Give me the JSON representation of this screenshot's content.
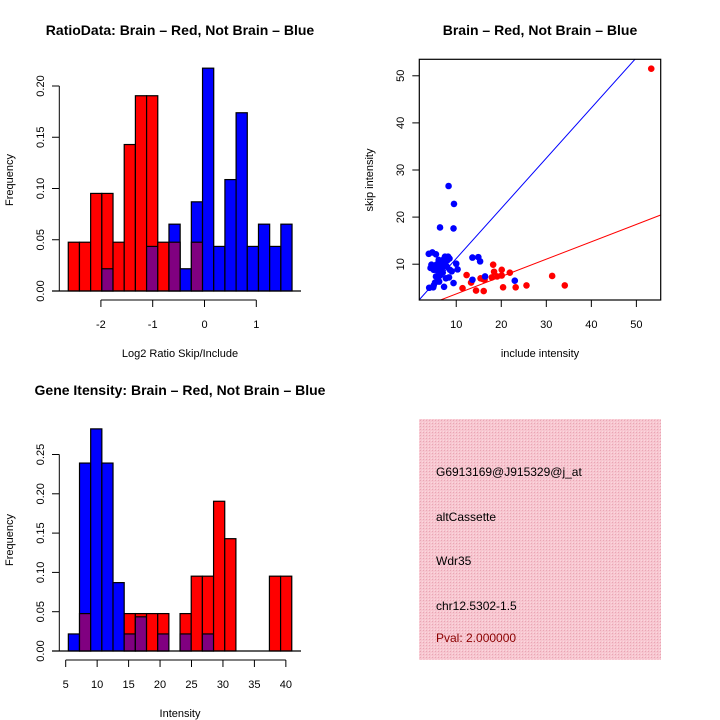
{
  "chart_data": [
    {
      "id": "ratio",
      "type": "bar",
      "title": "RatioData: Brain – Red, Not Brain – Blue",
      "xlabel": "Log2 Ratio Skip/Include",
      "ylabel": "Frequency",
      "bin_start": -2.63,
      "bin_width": 0.216,
      "series": [
        {
          "name": "Brain",
          "color": "#ff0000",
          "values": [
            0.0476,
            0.0476,
            0.0952,
            0.0952,
            0.0476,
            0.1429,
            0.1905,
            0.1905,
            0.0476,
            0.0476,
            0,
            0.0476,
            0,
            0,
            0,
            0,
            0,
            0,
            0,
            0
          ]
        },
        {
          "name": "Not Brain",
          "color": "#0000ff",
          "values": [
            0,
            0,
            0,
            0.0217,
            0,
            0,
            0,
            0.0435,
            0,
            0.0652,
            0.0217,
            0.087,
            0.2174,
            0.0435,
            0.1087,
            0.1739,
            0.0435,
            0.0652,
            0.0435,
            0.0652
          ]
        }
      ],
      "overlap_color": "#800080",
      "xticks": [
        "-2",
        "-1",
        "0",
        "1"
      ],
      "xtick_values": [
        -2,
        -1,
        0,
        1
      ],
      "yticks": [
        "0.00",
        "0.05",
        "0.10",
        "0.15",
        "0.20"
      ],
      "ytick_values": [
        0,
        0.05,
        0.1,
        0.15,
        0.2
      ]
    },
    {
      "id": "scatter",
      "type": "scatter",
      "title": "Brain – Red, Not Brain – Blue",
      "xlabel": "include intensity",
      "ylabel": "skip intensity",
      "xlim": [
        1.8,
        55.4
      ],
      "ylim": [
        2.4,
        53.5
      ],
      "xticks": [
        "10",
        "20",
        "30",
        "40",
        "50"
      ],
      "xtick_values": [
        10,
        20,
        30,
        40,
        50
      ],
      "yticks": [
        "10",
        "20",
        "30",
        "40",
        "50"
      ],
      "ytick_values": [
        10,
        20,
        30,
        40,
        50
      ],
      "lines": [
        {
          "name": "Not Brain fit",
          "color": "#0000ff",
          "slope": 1.066,
          "intercept": 0.54
        },
        {
          "name": "Brain fit",
          "color": "#ff0000",
          "slope": 0.369,
          "intercept": 0.0
        }
      ],
      "series": [
        {
          "name": "Brain",
          "color": "#ff0000",
          "points": [
            [
              53.3,
              51.5
            ],
            [
              18.2,
              9.9
            ],
            [
              20.1,
              8.8
            ],
            [
              18.4,
              8.4
            ],
            [
              21.9,
              8.2
            ],
            [
              12.3,
              7.7
            ],
            [
              19.1,
              7.4
            ],
            [
              20.1,
              7.6
            ],
            [
              31.3,
              7.5
            ],
            [
              13.3,
              6.1
            ],
            [
              15.4,
              7.0
            ],
            [
              16.3,
              6.7
            ],
            [
              11.4,
              4.9
            ],
            [
              14.4,
              4.4
            ],
            [
              16.1,
              4.3
            ],
            [
              20.4,
              5.1
            ],
            [
              23.2,
              5.1
            ],
            [
              25.6,
              5.5
            ],
            [
              34.1,
              5.5
            ],
            [
              17.9,
              7.2
            ],
            [
              15.8,
              6.9
            ]
          ]
        },
        {
          "name": "Not Brain",
          "color": "#0000ff",
          "points": [
            [
              8.3,
              26.6
            ],
            [
              9.5,
              22.8
            ],
            [
              6.4,
              17.8
            ],
            [
              9.4,
              17.6
            ],
            [
              10.0,
              10.1
            ],
            [
              10.3,
              8.9
            ],
            [
              13.6,
              11.4
            ],
            [
              14.9,
              11.5
            ],
            [
              15.3,
              10.6
            ],
            [
              16.4,
              7.4
            ],
            [
              13.6,
              6.7
            ],
            [
              23.0,
              6.5
            ],
            [
              9.4,
              6.0
            ],
            [
              7.3,
              5.2
            ],
            [
              3.9,
              12.2
            ],
            [
              4.7,
              12.5
            ],
            [
              5.5,
              12.1
            ],
            [
              4.3,
              9.2
            ],
            [
              5.0,
              8.8
            ],
            [
              5.8,
              8.7
            ],
            [
              6.7,
              10.2
            ],
            [
              7.5,
              11.6
            ],
            [
              8.2,
              11.6
            ],
            [
              6.1,
              10.9
            ],
            [
              7.9,
              9.5
            ],
            [
              8.6,
              8.8
            ],
            [
              7.0,
              8.2
            ],
            [
              7.7,
              7.0
            ],
            [
              8.4,
              7.2
            ],
            [
              6.0,
              6.7
            ],
            [
              5.3,
              6.1
            ],
            [
              4.9,
              5.1
            ],
            [
              4.0,
              5.0
            ],
            [
              6.5,
              9.2
            ],
            [
              7.3,
              10.2
            ],
            [
              5.6,
              9.9
            ],
            [
              4.5,
              9.9
            ],
            [
              8.0,
              10.8
            ],
            [
              6.5,
              7.7
            ],
            [
              5.5,
              7.4
            ],
            [
              7.2,
              11.0
            ],
            [
              5.0,
              5.5
            ],
            [
              6.2,
              6.3
            ],
            [
              8.5,
              11.2
            ],
            [
              6.8,
              9.0
            ],
            [
              9.0,
              8.5
            ]
          ]
        }
      ]
    },
    {
      "id": "intensity",
      "type": "bar",
      "title": "Gene Itensity: Brain – Red, Not Brain – Blue",
      "xlabel": "Intensity",
      "ylabel": "Frequency",
      "bin_start": 5.42,
      "bin_width": 1.776,
      "series": [
        {
          "name": "Brain",
          "color": "#ff0000",
          "values": [
            0,
            0.0476,
            0,
            0,
            0,
            0.0476,
            0.0476,
            0.0476,
            0.0476,
            0,
            0.0476,
            0.0952,
            0.0952,
            0.1905,
            0.1429,
            0,
            0,
            0,
            0.0952,
            0.0952
          ]
        },
        {
          "name": "Not Brain",
          "color": "#0000ff",
          "values": [
            0.0217,
            0.2391,
            0.2826,
            0.2391,
            0.087,
            0.0217,
            0.0435,
            0,
            0.0217,
            0,
            0.0217,
            0,
            0.0217,
            0,
            0,
            0,
            0,
            0,
            0,
            0
          ]
        }
      ],
      "overlap_color": "#800080",
      "xticks": [
        "5",
        "10",
        "15",
        "20",
        "25",
        "30",
        "35",
        "40"
      ],
      "xtick_values": [
        5,
        10,
        15,
        20,
        25,
        30,
        35,
        40
      ],
      "yticks": [
        "0.00",
        "0.05",
        "0.10",
        "0.15",
        "0.20",
        "0.25"
      ],
      "ytick_values": [
        0,
        0.05,
        0.1,
        0.15,
        0.2,
        0.25
      ]
    }
  ],
  "info_panel": {
    "background": "#f4bcc8",
    "probe": "G6913169@J915329@j_at",
    "event_type": "altCassette",
    "gene": "Wdr35",
    "location": "chr12.5302-1.5",
    "pval": "Pval: 2.000000",
    "pval_color": "#8b0000"
  }
}
